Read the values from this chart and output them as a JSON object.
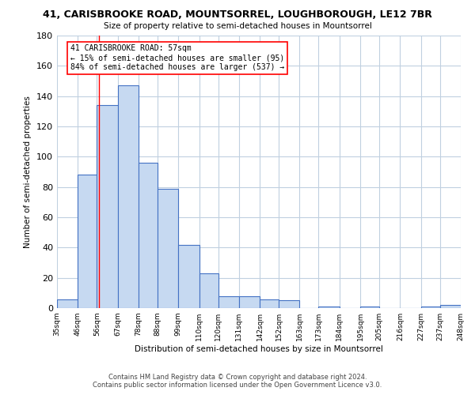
{
  "title": "41, CARISBROOKE ROAD, MOUNTSORREL, LOUGHBOROUGH, LE12 7BR",
  "subtitle": "Size of property relative to semi-detached houses in Mountsorrel",
  "xlabel": "Distribution of semi-detached houses by size in Mountsorrel",
  "ylabel": "Number of semi-detached properties",
  "bar_edges": [
    35,
    46,
    56,
    67,
    78,
    88,
    99,
    110,
    120,
    131,
    142,
    152,
    163,
    173,
    184,
    195,
    205,
    216,
    227,
    237,
    248
  ],
  "bar_heights": [
    6,
    88,
    134,
    147,
    96,
    79,
    42,
    23,
    8,
    8,
    6,
    5,
    0,
    1,
    0,
    1,
    0,
    0,
    1,
    2
  ],
  "bar_color": "#c6d9f1",
  "bar_edge_color": "#4472c4",
  "property_line_x": 57,
  "property_line_color": "#ff0000",
  "annotation_title": "41 CARISBROOKE ROAD: 57sqm",
  "annotation_line1": "← 15% of semi-detached houses are smaller (95)",
  "annotation_line2": "84% of semi-detached houses are larger (537) →",
  "annotation_box_color": "#ffffff",
  "annotation_box_edge": "#ff0000",
  "tick_labels": [
    "35sqm",
    "46sqm",
    "56sqm",
    "67sqm",
    "78sqm",
    "88sqm",
    "99sqm",
    "110sqm",
    "120sqm",
    "131sqm",
    "142sqm",
    "152sqm",
    "163sqm",
    "173sqm",
    "184sqm",
    "195sqm",
    "205sqm",
    "216sqm",
    "227sqm",
    "237sqm",
    "248sqm"
  ],
  "ylim": [
    0,
    180
  ],
  "yticks": [
    0,
    20,
    40,
    60,
    80,
    100,
    120,
    140,
    160,
    180
  ],
  "footer_line1": "Contains HM Land Registry data © Crown copyright and database right 2024.",
  "footer_line2": "Contains public sector information licensed under the Open Government Licence v3.0.",
  "bg_color": "#ffffff",
  "grid_color": "#c0d0e0"
}
